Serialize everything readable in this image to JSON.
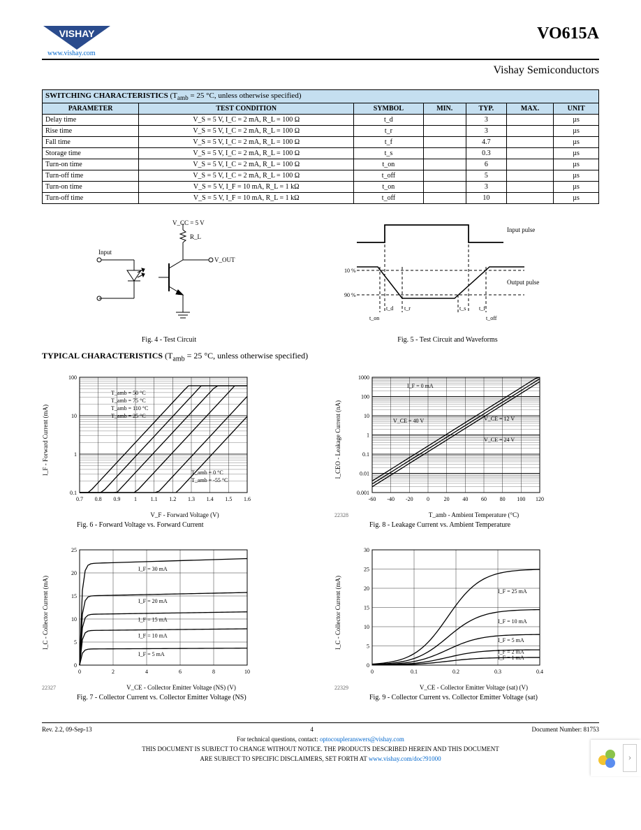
{
  "header": {
    "brand": "VISHAY",
    "website": "www.vishay.com",
    "part_number": "VO615A",
    "subtitle": "Vishay Semiconductors"
  },
  "switching_table": {
    "title_prefix": "SWITCHING CHARACTERISTICS",
    "title_note_prefix": "(T",
    "title_note_sub": "amb",
    "title_note_suffix": " = 25 °C, unless otherwise specified)",
    "columns": [
      "PARAMETER",
      "TEST CONDITION",
      "SYMBOL",
      "MIN.",
      "TYP.",
      "MAX.",
      "UNIT"
    ],
    "header_bg": "#c5dff0",
    "rows": [
      {
        "param": "Delay time",
        "cond": "V_S = 5 V, I_C = 2 mA, R_L = 100 Ω",
        "sym": "t_d",
        "min": "",
        "typ": "3",
        "max": "",
        "unit": "µs"
      },
      {
        "param": "Rise time",
        "cond": "V_S = 5 V, I_C = 2 mA, R_L = 100 Ω",
        "sym": "t_r",
        "min": "",
        "typ": "3",
        "max": "",
        "unit": "µs"
      },
      {
        "param": "Fall time",
        "cond": "V_S = 5 V, I_C = 2 mA, R_L = 100 Ω",
        "sym": "t_f",
        "min": "",
        "typ": "4.7",
        "max": "",
        "unit": "µs"
      },
      {
        "param": "Storage time",
        "cond": "V_S = 5 V, I_C = 2 mA, R_L = 100 Ω",
        "sym": "t_s",
        "min": "",
        "typ": "0.3",
        "max": "",
        "unit": "µs"
      },
      {
        "param": "Turn-on time",
        "cond": "V_S = 5 V, I_C = 2 mA, R_L = 100 Ω",
        "sym": "t_on",
        "min": "",
        "typ": "6",
        "max": "",
        "unit": "µs"
      },
      {
        "param": "Turn-off time",
        "cond": "V_S = 5 V, I_C = 2 mA, R_L = 100 Ω",
        "sym": "t_off",
        "min": "",
        "typ": "5",
        "max": "",
        "unit": "µs"
      },
      {
        "param": "Turn-on time",
        "cond": "V_S = 5 V, I_F = 10 mA, R_L = 1 kΩ",
        "sym": "t_on",
        "min": "",
        "typ": "3",
        "max": "",
        "unit": "µs"
      },
      {
        "param": "Turn-off time",
        "cond": "V_S = 5 V, I_F = 10 mA, R_L = 1 kΩ",
        "sym": "t_off",
        "min": "",
        "typ": "10",
        "max": "",
        "unit": "µs"
      }
    ]
  },
  "fig4": {
    "caption": "Fig. 4 - Test Circuit",
    "labels": {
      "vcc": "V_CC = 5 V",
      "input": "Input",
      "rl": "R_L",
      "vout": "V_OUT"
    }
  },
  "fig5": {
    "caption": "Fig. 5 - Test Circuit and Waveforms",
    "labels": {
      "input_pulse": "Input pulse",
      "output_pulse": "Output pulse",
      "p10": "10 %",
      "p90": "90 %",
      "ton": "t_on",
      "td": "t_d",
      "tr": "t_r",
      "ts": "t_s",
      "tf": "t_f",
      "toff": "t_off"
    }
  },
  "typical_header": {
    "prefix": "TYPICAL CHARACTERISTICS",
    "note_prefix": "(T",
    "note_sub": "amb",
    "note_suffix": " = 25 °C, unless otherwise specified)"
  },
  "fig6": {
    "caption": "Fig. 6 - Forward Voltage vs. Forward Current",
    "xlabel": "V_F - Forward Voltage (V)",
    "ylabel": "I_F - Forward Current (mA)",
    "yscale": "log",
    "ylim": [
      0.1,
      100
    ],
    "yticks": [
      0.1,
      1,
      10,
      100
    ],
    "xlim": [
      0.7,
      1.6
    ],
    "xticks": [
      0.7,
      0.8,
      0.9,
      1.0,
      1.1,
      1.2,
      1.3,
      1.4,
      1.5,
      1.6
    ],
    "series_labels": [
      "T_amb = 50 °C",
      "T_amb = 75 °C",
      "T_amb = 110 °C",
      "T_amb = 25 °C",
      "T_amb = -55 °C",
      "T_amb = 0 °C"
    ],
    "line_color": "#000000",
    "grid_color": "#000000",
    "bg": "#ffffff"
  },
  "fig8": {
    "caption": "Fig. 8 - Leakage Current vs. Ambient Temperature",
    "xlabel": "T_amb - Ambient Temperature (°C)",
    "ylabel": "I_CEO - Leakage Current (nA)",
    "yscale": "log",
    "ylim": [
      0.001,
      1000
    ],
    "yticks": [
      0.001,
      0.01,
      0.1,
      1,
      10,
      100,
      1000
    ],
    "xlim": [
      -60,
      120
    ],
    "xticks": [
      -60,
      -40,
      -20,
      0,
      20,
      40,
      60,
      80,
      100,
      120
    ],
    "series_labels": [
      "I_F = 0 mA",
      "V_CE = 40 V",
      "V_CE = 12 V",
      "V_CE = 24 V"
    ],
    "chartnum": "22328",
    "line_color": "#000000",
    "grid_color": "#000000",
    "bg": "#ffffff"
  },
  "fig7": {
    "caption": "Fig. 7 - Collector Current vs. Collector Emitter Voltage (NS)",
    "xlabel": "V_CE - Collector Emitter Voltage (NS) (V)",
    "ylabel": "I_C - Collector Current (mA)",
    "ylim": [
      0,
      25
    ],
    "yticks": [
      0,
      5,
      10,
      15,
      20,
      25
    ],
    "xlim": [
      0,
      10
    ],
    "xticks": [
      0,
      2,
      4,
      6,
      8,
      10
    ],
    "series_labels": [
      "I_F = 30 mA",
      "I_F = 20 mA",
      "I_F = 15 mA",
      "I_F = 10 mA",
      "I_F = 5 mA"
    ],
    "plateaus": [
      22,
      15,
      11,
      7.5,
      3.5
    ],
    "chartnum": "22327",
    "line_color": "#000000",
    "grid_color": "#000000",
    "bg": "#ffffff"
  },
  "fig9": {
    "caption": "Fig. 9 - Collector Current vs. Collector Emitter Voltage (sat)",
    "xlabel": "V_CE - Collector Emitter Voltage (sat) (V)",
    "ylabel": "I_C - Collector Current (mA)",
    "ylim": [
      0,
      30
    ],
    "yticks": [
      0,
      5,
      10,
      15,
      20,
      25,
      30
    ],
    "xlim": [
      0,
      0.4
    ],
    "xticks": [
      0,
      0.1,
      0.2,
      0.3,
      0.4
    ],
    "series_labels": [
      "I_F = 25 mA",
      "I_F = 10 mA",
      "I_F = 5 mA",
      "I_F = 1 mA",
      "I_F = 2 mA"
    ],
    "end_values": [
      25,
      14.5,
      8,
      2,
      4
    ],
    "chartnum": "22329",
    "line_color": "#000000",
    "grid_color": "#000000",
    "bg": "#ffffff"
  },
  "footer": {
    "rev": "Rev. 2.2, 09-Sep-13",
    "page": "4",
    "docnum": "Document Number: 81753",
    "tech_prefix": "For technical questions, contact:",
    "tech_email": "optocoupleranswers@vishay.com",
    "disclaimer1": "THIS DOCUMENT IS SUBJECT TO CHANGE WITHOUT NOTICE. THE PRODUCTS DESCRIBED HEREIN AND THIS DOCUMENT",
    "disclaimer2_prefix": "ARE SUBJECT TO SPECIFIC DISCLAIMERS, SET FORTH AT",
    "disclaimer2_link": "www.vishay.com/doc?91000"
  }
}
